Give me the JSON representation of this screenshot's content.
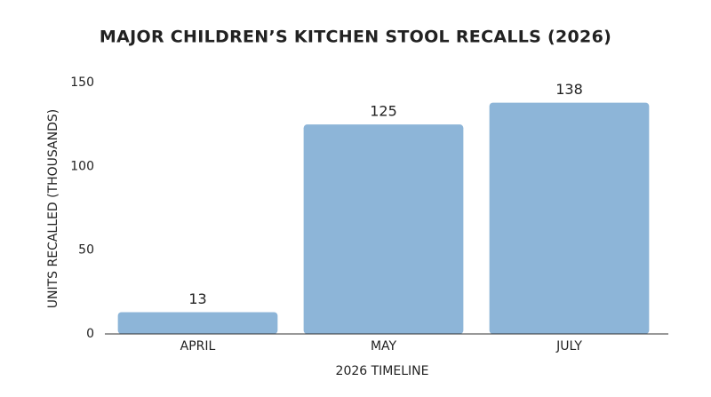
{
  "chart_data": {
    "type": "bar",
    "title": "MAJOR CHILDREN’S KITCHEN STOOL RECALLS (2026)",
    "x_label": "2026 TIMELINE",
    "y_label": "UNITS RECALLED (THOUSANDS)",
    "categories": [
      "APRIL",
      "MAY",
      "JULY"
    ],
    "values": [
      13,
      125,
      138
    ],
    "color": "#8db5d8",
    "ylim": [
      0,
      150
    ],
    "yticks": [
      0,
      50,
      100,
      150
    ],
    "grid": false,
    "data_labels": true
  }
}
